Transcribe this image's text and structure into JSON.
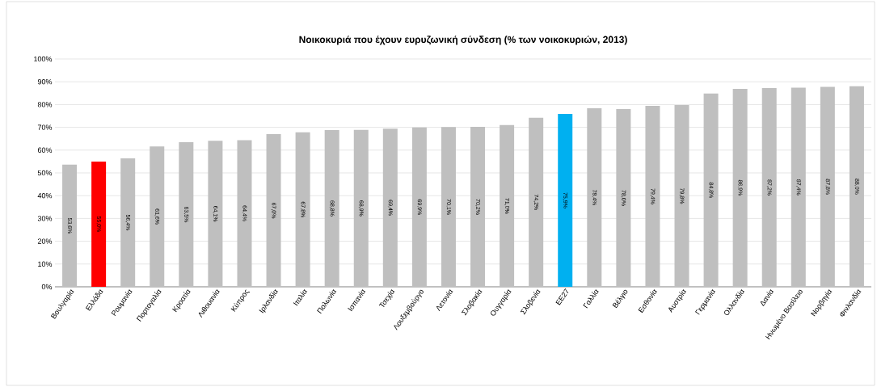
{
  "chart_data": {
    "type": "bar",
    "title": "Νοικοκυριά που έχουν ευρυζωνική σύνδεση (% των νοικοκυριών, 2013)",
    "categories": [
      "Βουλγαρία",
      "Ελλάδα",
      "Ρουμανία",
      "Πορτογαλία",
      "Κροατία",
      "Λιθουανία",
      "Κύπρος",
      "Ιρλανδία",
      "Ιταλία",
      "Πολωνία",
      "Ισπανία",
      "Τσεχία",
      "Λουξεμβούργο",
      "Λετονία",
      "Σλοβακία",
      "Ουγγαρία",
      "Σλοβενία",
      "ΕΕ27",
      "Γαλλία",
      "Βέλγιο",
      "Εσθονία",
      "Αυστρία",
      "Γερμανία",
      "Ολλανδία",
      "Δανία",
      "Ηνωμένο Βασίλειο",
      "Νορβηγία",
      "Φινλανδία"
    ],
    "values": [
      53.6,
      55.0,
      56.4,
      61.6,
      63.5,
      64.1,
      64.4,
      67.0,
      67.8,
      68.8,
      68.9,
      69.4,
      69.9,
      70.1,
      70.2,
      71.0,
      74.2,
      75.9,
      78.4,
      78.0,
      79.4,
      79.8,
      84.8,
      86.9,
      87.2,
      87.4,
      87.8,
      88.0
    ],
    "value_labels": [
      "53,6%",
      "55,0%",
      "56,4%",
      "61,6%",
      "63,5%",
      "64,1%",
      "64,4%",
      "67,0%",
      "67,8%",
      "68,8%",
      "68,9%",
      "69,4%",
      "69,9%",
      "70,1%",
      "70,2%",
      "71,0%",
      "74,2%",
      "75,9%",
      "78,4%",
      "78,0%",
      "79,4%",
      "79,8%",
      "84,8%",
      "86,9%",
      "87,2%",
      "87,4%",
      "87,8%",
      "88,0%"
    ],
    "colors": [
      "#bfbfbf",
      "#ff0000",
      "#bfbfbf",
      "#bfbfbf",
      "#bfbfbf",
      "#bfbfbf",
      "#bfbfbf",
      "#bfbfbf",
      "#bfbfbf",
      "#bfbfbf",
      "#bfbfbf",
      "#bfbfbf",
      "#bfbfbf",
      "#bfbfbf",
      "#bfbfbf",
      "#bfbfbf",
      "#bfbfbf",
      "#00b0f0",
      "#bfbfbf",
      "#bfbfbf",
      "#bfbfbf",
      "#bfbfbf",
      "#bfbfbf",
      "#bfbfbf",
      "#bfbfbf",
      "#bfbfbf",
      "#bfbfbf",
      "#bfbfbf"
    ],
    "ylim": [
      0,
      100
    ],
    "yticks": [
      {
        "value": 0,
        "label": "0%"
      },
      {
        "value": 10,
        "label": "10%"
      },
      {
        "value": 20,
        "label": "20%"
      },
      {
        "value": 30,
        "label": "30%"
      },
      {
        "value": 40,
        "label": "40%"
      },
      {
        "value": 50,
        "label": "50%"
      },
      {
        "value": 60,
        "label": "60%"
      },
      {
        "value": 70,
        "label": "70%"
      },
      {
        "value": 80,
        "label": "80%"
      },
      {
        "value": 90,
        "label": "90%"
      },
      {
        "value": 100,
        "label": "100%"
      }
    ],
    "grid": "y",
    "legend": false
  }
}
